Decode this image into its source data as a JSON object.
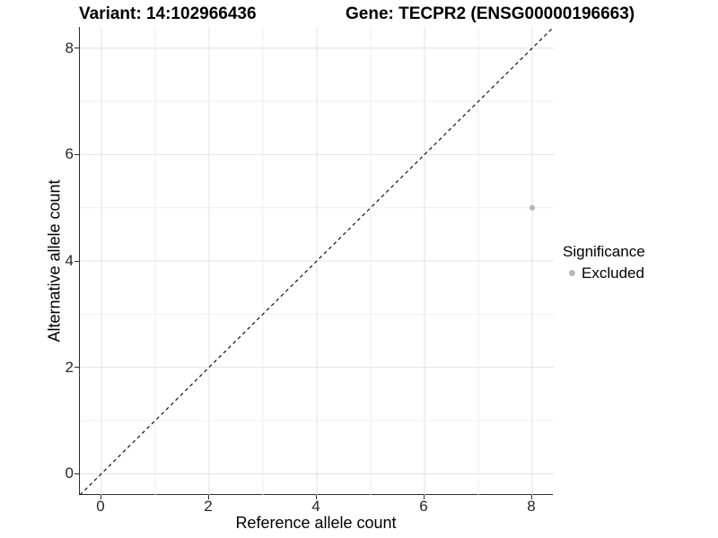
{
  "chart_data": {
    "type": "scatter",
    "titles": {
      "left": "Variant: 14:102966436",
      "right": "Gene: TECPR2 (ENSG00000196663)"
    },
    "xlabel": "Reference allele count",
    "ylabel": "Alternative allele count",
    "xlim": [
      -0.4,
      8.4
    ],
    "ylim": [
      -0.4,
      8.4
    ],
    "x_ticks": [
      0,
      2,
      4,
      6,
      8
    ],
    "y_ticks": [
      0,
      2,
      4,
      6,
      8
    ],
    "x_minor_gridlines": [
      1,
      3,
      5,
      7
    ],
    "y_minor_gridlines": [
      1,
      3,
      5,
      7
    ],
    "grid": "major and minor, light gray on white",
    "identity_line": {
      "style": "dashed",
      "slope": 1,
      "intercept": 0
    },
    "series": [
      {
        "name": "Excluded",
        "color": "#b8b8b8",
        "points": [
          {
            "x": 8,
            "y": 5
          }
        ]
      }
    ],
    "legend": {
      "title": "Significance",
      "position": "right",
      "entries": [
        {
          "label": "Excluded",
          "color": "#b8b8b8",
          "marker": "circle"
        }
      ]
    },
    "colors": {
      "grid_major": "#e3e3e3",
      "grid_minor": "#efefef",
      "axis_line": "#2d2d2d",
      "tick_label": "#262626",
      "identity_line": "#111111",
      "title_text": "#000000",
      "point": "#b8b8b8"
    }
  }
}
